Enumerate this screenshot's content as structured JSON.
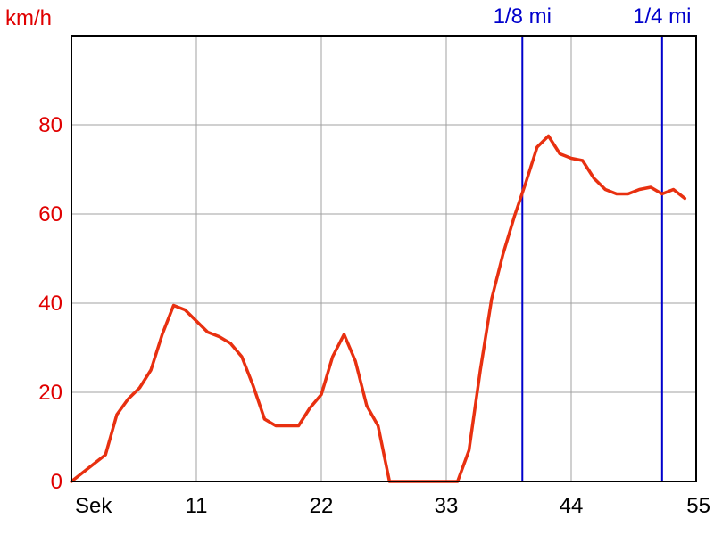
{
  "chart_data": {
    "type": "line",
    "ylabel": "km/h",
    "xlabel": "Sek",
    "xlim": [
      0,
      55
    ],
    "ylim": [
      0,
      100
    ],
    "x_ticks": [
      11,
      22,
      33,
      44,
      55
    ],
    "y_ticks": [
      0,
      20,
      40,
      60,
      80
    ],
    "grid": true,
    "colors": {
      "series": "#e83010",
      "markers": "#0000cc",
      "grid": "#a0a0a0",
      "ytext": "#e00000"
    },
    "markers": [
      {
        "label": "1/8 mi",
        "x": 39.7
      },
      {
        "label": "1/4 mi",
        "x": 52.0
      }
    ],
    "series": [
      {
        "x": [
          0,
          3,
          4,
          5,
          6,
          7,
          8,
          9,
          10,
          11,
          12,
          13,
          14,
          15,
          16,
          17,
          18,
          19,
          20,
          21,
          22,
          23,
          24,
          25,
          26,
          27,
          28,
          29,
          30,
          31,
          32,
          33,
          34,
          35,
          36,
          37,
          38,
          39,
          40,
          41,
          42,
          43,
          44,
          45,
          46,
          47,
          48,
          49,
          50,
          51,
          52,
          53,
          54
        ],
        "values": [
          0,
          6,
          15,
          18.5,
          21,
          25,
          33,
          39.5,
          38.5,
          36,
          33.5,
          32.5,
          31,
          28,
          21.5,
          14,
          12.5,
          12.5,
          12.5,
          16.5,
          19.5,
          28,
          33,
          27,
          17,
          12.5,
          0,
          0,
          0,
          0,
          0,
          0,
          0,
          7,
          25,
          41,
          51,
          59.5,
          67,
          75,
          77.5,
          73.5,
          72.5,
          72,
          68,
          65.5,
          64.5,
          64.5,
          65.5,
          66,
          64.5,
          65.5,
          63.5
        ]
      }
    ]
  }
}
